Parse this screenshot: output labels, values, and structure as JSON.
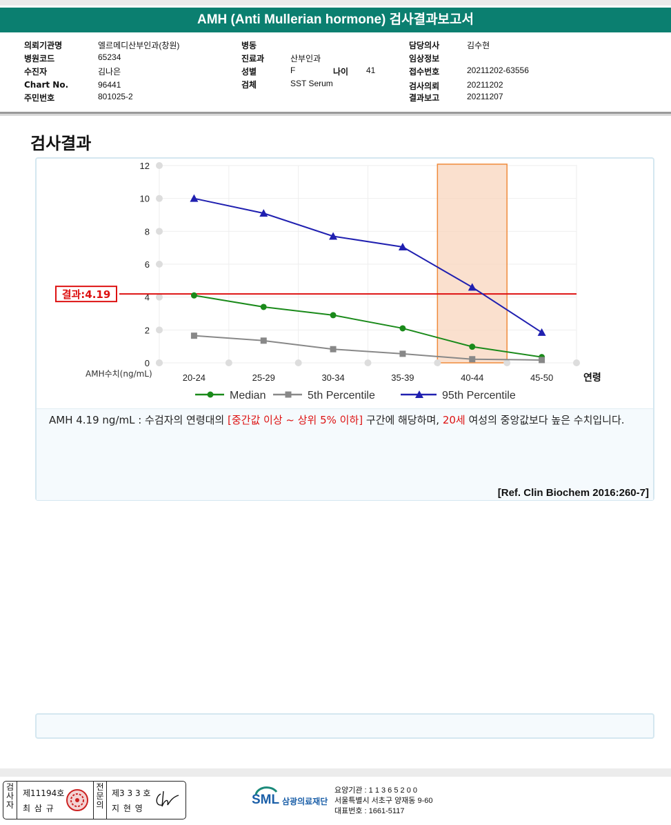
{
  "header": {
    "title": "AMH (Anti Mullerian hormone) 검사결과보고서",
    "col1": [
      {
        "label": "의뢰기관명",
        "value": "엘르메디산부인과(창원)"
      },
      {
        "label": "병원코드",
        "value": "65234"
      },
      {
        "label": "수진자",
        "value": "김나은"
      },
      {
        "label": "Chart No.",
        "value": "96441"
      },
      {
        "label": "주민번호",
        "value": "801025-2"
      }
    ],
    "col2": [
      {
        "label": "병동",
        "value": ""
      },
      {
        "label": "진료과",
        "value": "산부인과"
      },
      {
        "label": "성별",
        "value": "F"
      },
      {
        "label": "검체",
        "value": "SST Serum"
      }
    ],
    "age_label": "나이",
    "age_value": "41",
    "col3": [
      {
        "label": "담당의사",
        "value": "김수현"
      },
      {
        "label": "임상정보",
        "value": ""
      },
      {
        "label": "접수번호",
        "value": "20211202-63556"
      },
      {
        "label": "검사의뢰",
        "value": "20211202"
      },
      {
        "label": "결과보고",
        "value": "20211207"
      }
    ]
  },
  "section_title": "검사결과",
  "chart_data": {
    "type": "line",
    "categories": [
      "20-24",
      "25-29",
      "30-34",
      "35-39",
      "40-44",
      "45-50"
    ],
    "x_title": "연령",
    "y_title": "AMH수치(ng/mL)",
    "ylim": [
      0,
      12
    ],
    "yticks": [
      0,
      2,
      4,
      6,
      8,
      10,
      12
    ],
    "series": [
      {
        "name": "Median",
        "color": "#1a8a1a",
        "marker": "circle",
        "values": [
          4.1,
          3.4,
          2.9,
          2.1,
          0.98,
          0.35
        ]
      },
      {
        "name": "5th Percentile",
        "color": "#888888",
        "marker": "square",
        "values": [
          1.65,
          1.35,
          0.83,
          0.55,
          0.22,
          0.17
        ]
      },
      {
        "name": "95th Percentile",
        "color": "#2020b0",
        "marker": "triangle",
        "values": [
          10.0,
          9.1,
          7.7,
          7.05,
          4.6,
          1.85
        ]
      }
    ],
    "result_line": {
      "value": 4.19,
      "label": "결과:4.19",
      "color": "#dd1111"
    },
    "highlight_category": "40-44",
    "grid": true,
    "legend_position": "bottom"
  },
  "interpretation": {
    "p1": "AMH  4.19 ng/mL : 수검자의 연령대의 ",
    "red1": "[중간값 이상 ~ 상위 5% 이하]",
    "p2": "  구간에 해당하며, ",
    "red2": "20세",
    "p3": " 여성의 중앙값보다 높은 수치입니다."
  },
  "reference": "[Ref. Clin Biochem 2016:260-7]",
  "footer": {
    "sig1_vertical": "검사자",
    "sig1_number": "제11194호",
    "sig1_name": "최 삼 규",
    "sig2_vertical": "전문의",
    "sig2_number": "제3 3 3 호",
    "sig2_name": "지 현 영",
    "logo_text": "SML",
    "logo_org": "삼광의료재단",
    "addr_lines": [
      "요양기관 : 1 1 3 6 5 2 0 0",
      "서울특별시 서초구 양재동 9-60",
      "대표번호 : 1661-5117"
    ]
  }
}
